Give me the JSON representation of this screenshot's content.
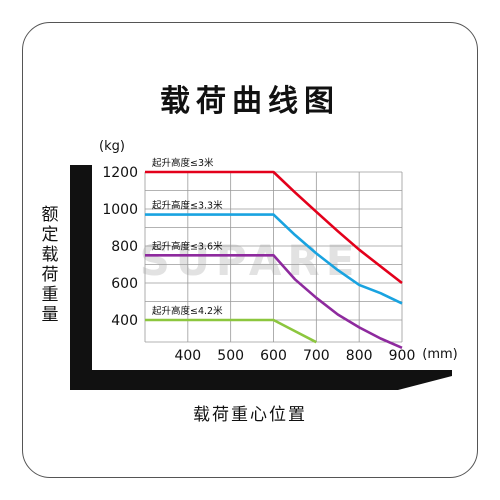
{
  "chart_data": {
    "type": "line",
    "title": "载荷曲线图",
    "xlabel": "载荷重心位置",
    "ylabel": "额定载荷重量",
    "x_unit": "(mm)",
    "y_unit": "(kg)",
    "x_ticks": [
      400,
      500,
      600,
      700,
      800,
      900
    ],
    "y_ticks": [
      400,
      600,
      800,
      1000,
      1200
    ],
    "xlim": [
      300,
      900
    ],
    "ylim": [
      300,
      1300
    ],
    "watermark": "SUPARE",
    "series": [
      {
        "name": "起升高度≤3米",
        "color": "#e3001b",
        "x": [
          300,
          600,
          650,
          700,
          750,
          800,
          850,
          900
        ],
        "y": [
          1200,
          1200,
          1090,
          985,
          880,
          780,
          690,
          600
        ]
      },
      {
        "name": "起升高度≤3.3米",
        "color": "#19a3e0",
        "x": [
          300,
          600,
          650,
          700,
          750,
          800,
          850,
          900
        ],
        "y": [
          970,
          970,
          860,
          760,
          670,
          590,
          545,
          490
        ]
      },
      {
        "name": "起升高度≤3.6米",
        "color": "#8e2a9e",
        "x": [
          300,
          600,
          650,
          700,
          750,
          800,
          850,
          900
        ],
        "y": [
          750,
          750,
          620,
          520,
          430,
          360,
          300,
          250
        ]
      },
      {
        "name": "起升高度≤4.2米",
        "color": "#8cc63e",
        "x": [
          300,
          600,
          650,
          700
        ],
        "y": [
          400,
          400,
          340,
          280
        ]
      }
    ]
  }
}
